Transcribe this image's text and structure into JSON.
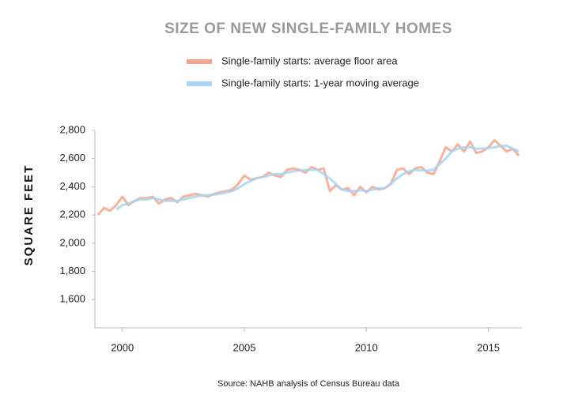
{
  "chart_data": {
    "type": "line",
    "title": "SIZE OF NEW SINGLE-FAMILY HOMES",
    "ylabel": "SQUARE FEET",
    "source": "Source: NAHB analysis of Census Bureau data",
    "x": [
      1999,
      1999.25,
      1999.5,
      1999.75,
      2000,
      2000.25,
      2000.5,
      2000.75,
      2001,
      2001.25,
      2001.5,
      2001.75,
      2002,
      2002.25,
      2002.5,
      2002.75,
      2003,
      2003.25,
      2003.5,
      2003.75,
      2004,
      2004.25,
      2004.5,
      2004.75,
      2005,
      2005.25,
      2005.5,
      2005.75,
      2006,
      2006.25,
      2006.5,
      2006.75,
      2007,
      2007.25,
      2007.5,
      2007.75,
      2008,
      2008.25,
      2008.5,
      2008.75,
      2009,
      2009.25,
      2009.5,
      2009.75,
      2010,
      2010.25,
      2010.5,
      2010.75,
      2011,
      2011.25,
      2011.5,
      2011.75,
      2012,
      2012.25,
      2012.5,
      2012.75,
      2013,
      2013.25,
      2013.5,
      2013.75,
      2014,
      2014.25,
      2014.5,
      2014.75,
      2015,
      2015.25,
      2015.5,
      2015.75,
      2016,
      2016.25
    ],
    "series": [
      {
        "name": "Single-family starts: average floor area",
        "color": "#f4a58c",
        "values": [
          2200,
          2250,
          2230,
          2270,
          2330,
          2270,
          2300,
          2320,
          2320,
          2330,
          2280,
          2310,
          2320,
          2290,
          2330,
          2340,
          2350,
          2340,
          2330,
          2350,
          2360,
          2370,
          2380,
          2420,
          2480,
          2450,
          2460,
          2470,
          2500,
          2480,
          2470,
          2520,
          2530,
          2520,
          2500,
          2540,
          2520,
          2530,
          2370,
          2410,
          2380,
          2390,
          2340,
          2400,
          2360,
          2400,
          2380,
          2390,
          2420,
          2520,
          2530,
          2490,
          2530,
          2540,
          2500,
          2490,
          2580,
          2680,
          2650,
          2700,
          2650,
          2720,
          2640,
          2650,
          2680,
          2730,
          2690,
          2650,
          2670,
          2620
        ]
      },
      {
        "name": "Single-family starts: 1-year moving average",
        "color": "#a8d4f0",
        "values": [
          null,
          null,
          null,
          2240,
          2270,
          2280,
          2300,
          2310,
          2310,
          2320,
          2310,
          2300,
          2300,
          2300,
          2310,
          2320,
          2330,
          2340,
          2340,
          2345,
          2350,
          2360,
          2370,
          2390,
          2420,
          2440,
          2460,
          2470,
          2480,
          2490,
          2490,
          2500,
          2510,
          2515,
          2520,
          2520,
          2520,
          2490,
          2460,
          2420,
          2380,
          2370,
          2370,
          2375,
          2370,
          2380,
          2390,
          2390,
          2420,
          2460,
          2490,
          2510,
          2520,
          2515,
          2515,
          2520,
          2560,
          2600,
          2650,
          2670,
          2680,
          2680,
          2670,
          2670,
          2675,
          2680,
          2690,
          2690,
          2670,
          2650
        ]
      }
    ],
    "xlim": [
      1998.875,
      2016.375
    ],
    "xticks": [
      2000,
      2005,
      2010,
      2015
    ],
    "ylim": [
      1400,
      2800
    ],
    "yticks": [
      {
        "value": 1600,
        "label": "1,600"
      },
      {
        "value": 1800,
        "label": "1,800"
      },
      {
        "value": 2000,
        "label": "2,000"
      },
      {
        "value": 2200,
        "label": "2,200"
      },
      {
        "value": 2400,
        "label": "2,400"
      },
      {
        "value": 2600,
        "label": "2,600"
      },
      {
        "value": 2800,
        "label": "2,800"
      }
    ],
    "legend": "top"
  }
}
